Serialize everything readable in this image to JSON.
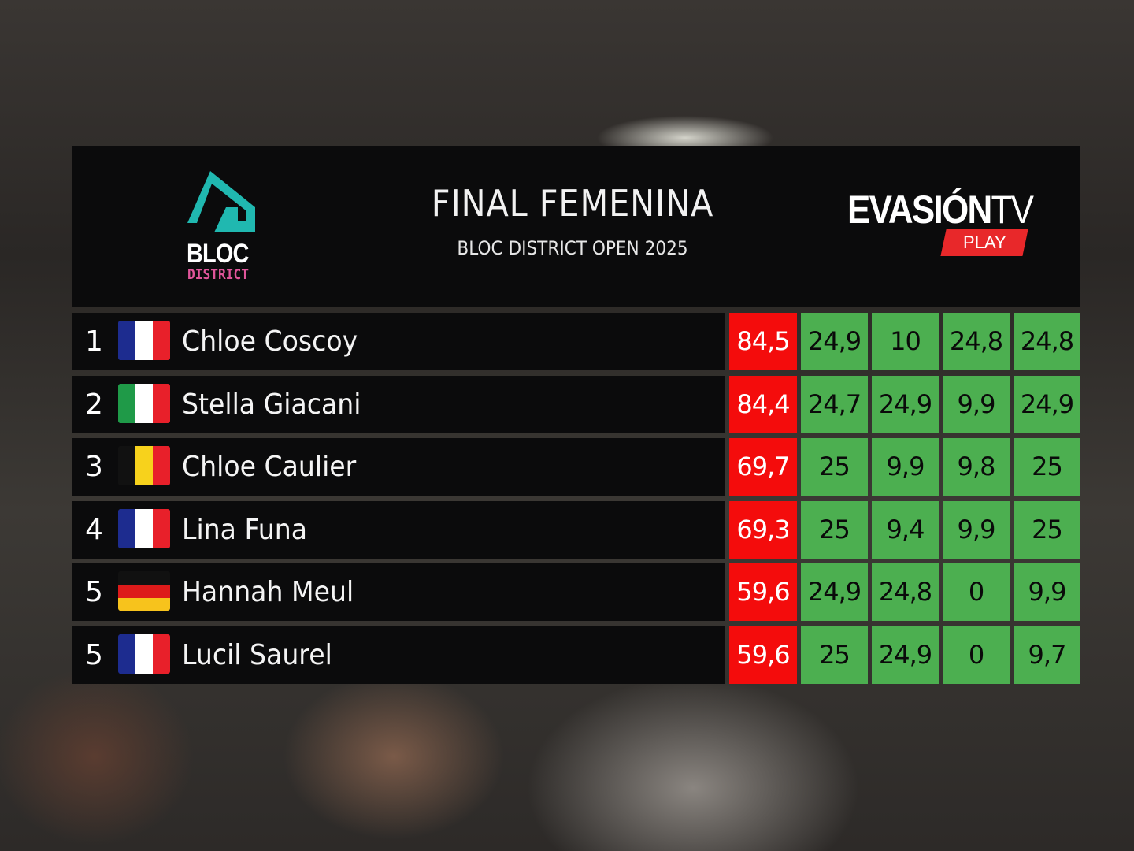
{
  "header": {
    "title": "FINAL FEMENINA",
    "subtitle": "BLOC DISTRICT OPEN 2025",
    "left_logo": {
      "line1": "BLOC",
      "line2": "DISTRICT",
      "accent": "#20b8b0",
      "text_accent": "#e0559a"
    },
    "right_logo": {
      "main": "EVASIÓN",
      "tv": "TV",
      "badge": "PLAY",
      "badge_color": "#e8282a"
    }
  },
  "colors": {
    "total_bg": "#f40c0c",
    "score_bg": "#4caf50",
    "panel_bg": "#0b0b0c"
  },
  "rows": [
    {
      "rank": "1",
      "name": "Chloe Coscoy",
      "flag": "france-flag",
      "total": "84,5",
      "scores": [
        "24,9",
        "10",
        "24,8",
        "24,8"
      ]
    },
    {
      "rank": "2",
      "name": "Stella Giacani",
      "flag": "italy-flag",
      "total": "84,4",
      "scores": [
        "24,7",
        "24,9",
        "9,9",
        "24,9"
      ]
    },
    {
      "rank": "3",
      "name": "Chloe Caulier",
      "flag": "belgium-flag",
      "total": "69,7",
      "scores": [
        "25",
        "9,9",
        "9,8",
        "25"
      ]
    },
    {
      "rank": "4",
      "name": "Lina Funa",
      "flag": "france-flag",
      "total": "69,3",
      "scores": [
        "25",
        "9,4",
        "9,9",
        "25"
      ]
    },
    {
      "rank": "5",
      "name": "Hannah Meul",
      "flag": "germany-flag",
      "total": "59,6",
      "scores": [
        "24,9",
        "24,8",
        "0",
        "9,9"
      ]
    },
    {
      "rank": "5",
      "name": "Lucil Saurel",
      "flag": "france-flag",
      "total": "59,6",
      "scores": [
        "25",
        "24,9",
        "0",
        "9,7"
      ]
    }
  ]
}
